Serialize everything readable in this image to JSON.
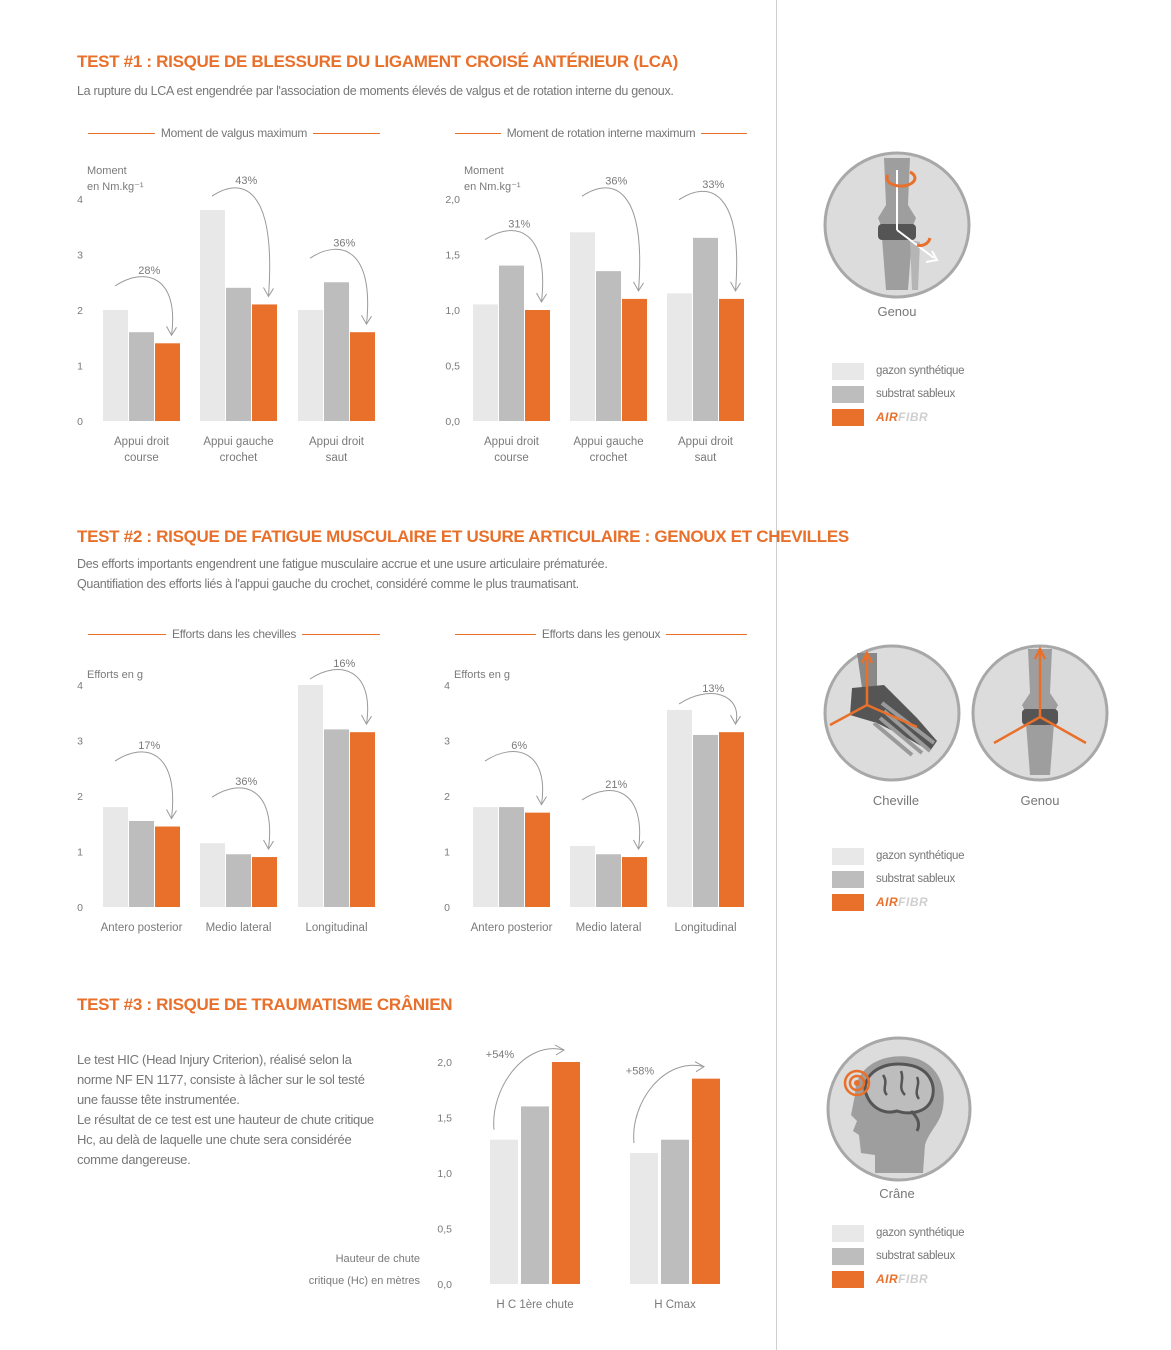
{
  "colors": {
    "synthetic": "#e8e8e8",
    "sandy": "#bdbdbe",
    "airfibr": "#e8702a"
  },
  "test1": {
    "title": "TEST #1 : RISQUE DE BLESSURE DU LIGAMENT CROISÉ ANTÉRIEUR (LCA)",
    "text": "La rupture du LCA est engendrée par l'association de moments élevés de valgus et de rotation interne du genoux.",
    "illustration_label": "Genou"
  },
  "test2": {
    "title": "TEST #2 : RISQUE DE FATIGUE MUSCULAIRE ET USURE ARTICULAIRE : GENOUX ET CHEVILLES",
    "text1": "Des efforts importants engendrent une fatigue musculaire accrue et une usure articulaire prématurée.",
    "text2": "Quantifiation des efforts liés à l'appui gauche du crochet, considéré comme le plus traumatisant.",
    "illustration_label_1": "Cheville",
    "illustration_label_2": "Genou"
  },
  "test3": {
    "title": "TEST #3 : RISQUE DE TRAUMATISME CRÂNIEN",
    "paragraph1": "Le test HIC (Head Injury Criterion), réalisé selon la norme NF EN 1177, consiste à lâcher sur le sol testé une fausse tête instrumentée.",
    "paragraph2": "Le résultat de ce test est une hauteur de chute critique Hc, au delà de laquelle une chute sera considérée comme dangereuse.",
    "illustration_label": "Crâne"
  },
  "legend": {
    "synthetic": "gazon synthétique",
    "sandy": "substrat sableux",
    "brand_a": "AIR",
    "brand_b": "FIBR"
  },
  "chart_data": [
    {
      "type": "bar",
      "title": "Moment de valgus maximum",
      "ylabel": [
        "Moment",
        "en Nm.kg⁻¹"
      ],
      "ylim": [
        0,
        4
      ],
      "yticks": [
        "0",
        "1",
        "2",
        "3",
        "4"
      ],
      "categories": [
        [
          "Appui droit",
          "course"
        ],
        [
          "Appui gauche",
          "crochet"
        ],
        [
          "Appui droit",
          "saut"
        ]
      ],
      "series": [
        {
          "name": "gazon synthétique",
          "values": [
            2.0,
            3.8,
            2.0
          ]
        },
        {
          "name": "substrat sableux",
          "values": [
            1.6,
            2.4,
            2.5
          ]
        },
        {
          "name": "AIRFIBR",
          "values": [
            1.4,
            2.1,
            1.6
          ]
        }
      ],
      "annotations": [
        "28%",
        "43%",
        "36%"
      ]
    },
    {
      "type": "bar",
      "title": "Moment de rotation interne maximum",
      "ylabel": [
        "Moment",
        "en Nm.kg⁻¹"
      ],
      "ylim": [
        0,
        2
      ],
      "yticks": [
        "0,0",
        "0,5",
        "1,0",
        "1,5",
        "2,0"
      ],
      "categories": [
        [
          "Appui droit",
          "course"
        ],
        [
          "Appui gauche",
          "crochet"
        ],
        [
          "Appui droit",
          "saut"
        ]
      ],
      "series": [
        {
          "name": "gazon synthétique",
          "values": [
            1.05,
            1.7,
            1.15
          ]
        },
        {
          "name": "substrat sableux",
          "values": [
            1.4,
            1.35,
            1.65
          ]
        },
        {
          "name": "AIRFIBR",
          "values": [
            1.0,
            1.1,
            1.1
          ]
        }
      ],
      "annotations": [
        "31%",
        "36%",
        "33%"
      ]
    },
    {
      "type": "bar",
      "title": "Efforts dans les chevilles",
      "ylabel": [
        "Efforts en g"
      ],
      "ylim": [
        0,
        4
      ],
      "yticks": [
        "0",
        "1",
        "2",
        "3",
        "4"
      ],
      "categories": [
        [
          "Antero posterior"
        ],
        [
          "Medio lateral"
        ],
        [
          "Longitudinal"
        ]
      ],
      "series": [
        {
          "name": "gazon synthétique",
          "values": [
            1.8,
            1.15,
            4.0
          ]
        },
        {
          "name": "substrat sableux",
          "values": [
            1.55,
            0.95,
            3.2
          ]
        },
        {
          "name": "AIRFIBR",
          "values": [
            1.45,
            0.9,
            3.15
          ]
        }
      ],
      "annotations": [
        "17%",
        "36%",
        "16%"
      ]
    },
    {
      "type": "bar",
      "title": "Efforts dans les genoux",
      "ylabel": [
        "Efforts en g"
      ],
      "ylim": [
        0,
        4
      ],
      "yticks": [
        "0",
        "1",
        "2",
        "3",
        "4"
      ],
      "categories": [
        [
          "Antero posterior"
        ],
        [
          "Medio lateral"
        ],
        [
          "Longitudinal"
        ]
      ],
      "series": [
        {
          "name": "gazon synthétique",
          "values": [
            1.8,
            1.1,
            3.55
          ]
        },
        {
          "name": "substrat sableux",
          "values": [
            1.8,
            0.95,
            3.1
          ]
        },
        {
          "name": "AIRFIBR",
          "values": [
            1.7,
            0.9,
            3.15
          ]
        }
      ],
      "annotations": [
        "6%",
        "21%",
        "13%"
      ]
    },
    {
      "type": "bar",
      "title": "",
      "ylabel": [
        "Hauteur de chute",
        "critique (Hc) en mètres"
      ],
      "ylim": [
        0,
        2
      ],
      "yticks": [
        "0,0",
        "0,5",
        "1,0",
        "1,5",
        "2,0"
      ],
      "categories": [
        [
          "H C 1ère chute"
        ],
        [
          "H Cmax"
        ]
      ],
      "series": [
        {
          "name": "gazon synthétique",
          "values": [
            1.3,
            1.18
          ]
        },
        {
          "name": "substrat sableux",
          "values": [
            1.6,
            1.3
          ]
        },
        {
          "name": "AIRFIBR",
          "values": [
            2.0,
            1.85
          ]
        }
      ],
      "annotations": [
        "+54%",
        "+58%"
      ]
    }
  ]
}
